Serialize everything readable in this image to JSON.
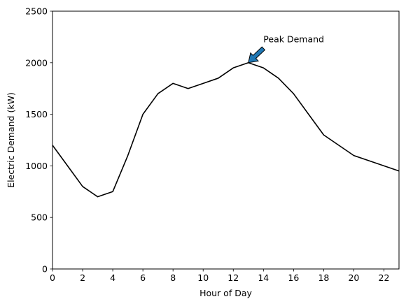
{
  "chart_data": {
    "type": "line",
    "xlabel": "Hour of Day",
    "ylabel": "Electric Demand (kW)",
    "xlim": [
      0,
      23
    ],
    "ylim": [
      0,
      2500
    ],
    "xticks": [
      0,
      2,
      4,
      6,
      8,
      10,
      12,
      14,
      16,
      18,
      20,
      22
    ],
    "yticks": [
      0,
      500,
      1000,
      1500,
      2000,
      2500
    ],
    "grid": false,
    "series": [
      {
        "color": "#000000",
        "x": [
          0,
          1,
          2,
          3,
          4,
          5,
          6,
          7,
          8,
          9,
          10,
          11,
          12,
          13,
          14,
          15,
          16,
          17,
          18,
          19,
          20,
          21,
          22,
          23
        ],
        "y": [
          1200,
          1000,
          800,
          700,
          750,
          1100,
          1500,
          1700,
          1800,
          1750,
          1800,
          1850,
          1950,
          2000,
          1950,
          1850,
          1700,
          1500,
          1300,
          1200,
          1100,
          1050,
          1000,
          950
        ]
      }
    ],
    "annotations": [
      {
        "text": "Peak Demand",
        "xy": [
          13,
          2000
        ],
        "text_xy": [
          14,
          2200
        ],
        "arrow_color": "#1f77b4"
      }
    ]
  }
}
